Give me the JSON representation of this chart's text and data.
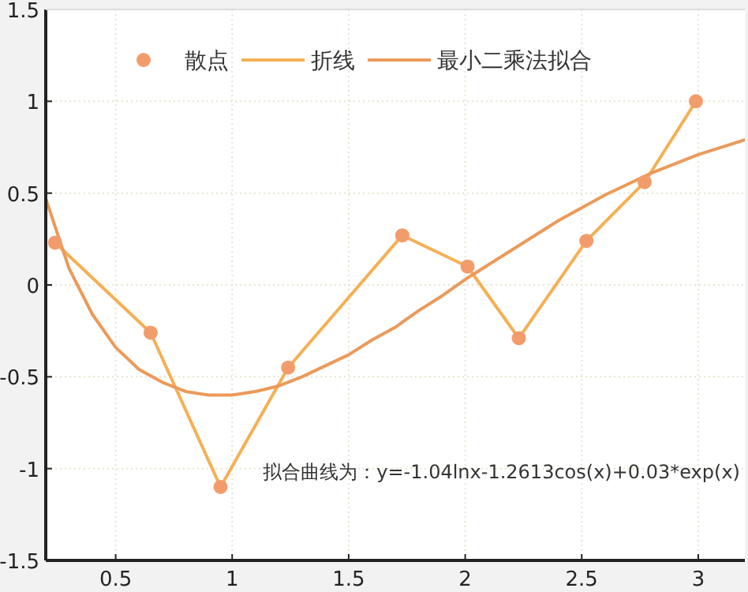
{
  "chart_data": {
    "type": "line",
    "annotations": [
      "拟合曲线为：y=-1.04lnx-1.2613cos(x)+0.03*exp(x)"
    ],
    "series": [
      {
        "name": "散点",
        "type": "scatter",
        "marker": "circle",
        "color": "#f39c6b",
        "x": [
          0.24,
          0.65,
          0.95,
          1.24,
          1.73,
          2.01,
          2.23,
          2.52,
          2.77,
          2.99
        ],
        "values": [
          0.23,
          -0.26,
          -1.1,
          -0.45,
          0.27,
          0.1,
          -0.29,
          0.24,
          0.56,
          1.0
        ]
      },
      {
        "name": "折线",
        "color": "#f5b054",
        "x": [
          0.24,
          0.65,
          0.95,
          1.24,
          1.73,
          2.01,
          2.23,
          2.52,
          2.77,
          2.99
        ],
        "values": [
          0.23,
          -0.26,
          -1.1,
          -0.45,
          0.27,
          0.1,
          -0.29,
          0.24,
          0.56,
          1.0
        ]
      },
      {
        "name": "最小二乘法拟合",
        "color": "#eb9a5a",
        "x": [
          0.2,
          0.3,
          0.4,
          0.5,
          0.6,
          0.7,
          0.8,
          0.9,
          1.0,
          1.1,
          1.2,
          1.3,
          1.4,
          1.5,
          1.6,
          1.7,
          1.8,
          1.9,
          2.0,
          2.2,
          2.4,
          2.6,
          2.8,
          3.0,
          3.2
        ],
        "values": [
          0.47,
          0.09,
          -0.16,
          -0.34,
          -0.46,
          -0.53,
          -0.58,
          -0.6,
          -0.6,
          -0.58,
          -0.55,
          -0.5,
          -0.44,
          -0.38,
          -0.3,
          -0.23,
          -0.14,
          -0.06,
          0.03,
          0.19,
          0.35,
          0.49,
          0.61,
          0.71,
          0.79
        ]
      }
    ],
    "xlim": [
      0.2,
      3.2
    ],
    "ylim": [
      -1.5,
      1.5
    ],
    "xticks": [
      0.5,
      1,
      1.5,
      2,
      2.5,
      3
    ],
    "yticks": [
      -1.5,
      -1,
      -0.5,
      0,
      0.5,
      1,
      1.5
    ],
    "grid": true,
    "legend": "top left"
  }
}
